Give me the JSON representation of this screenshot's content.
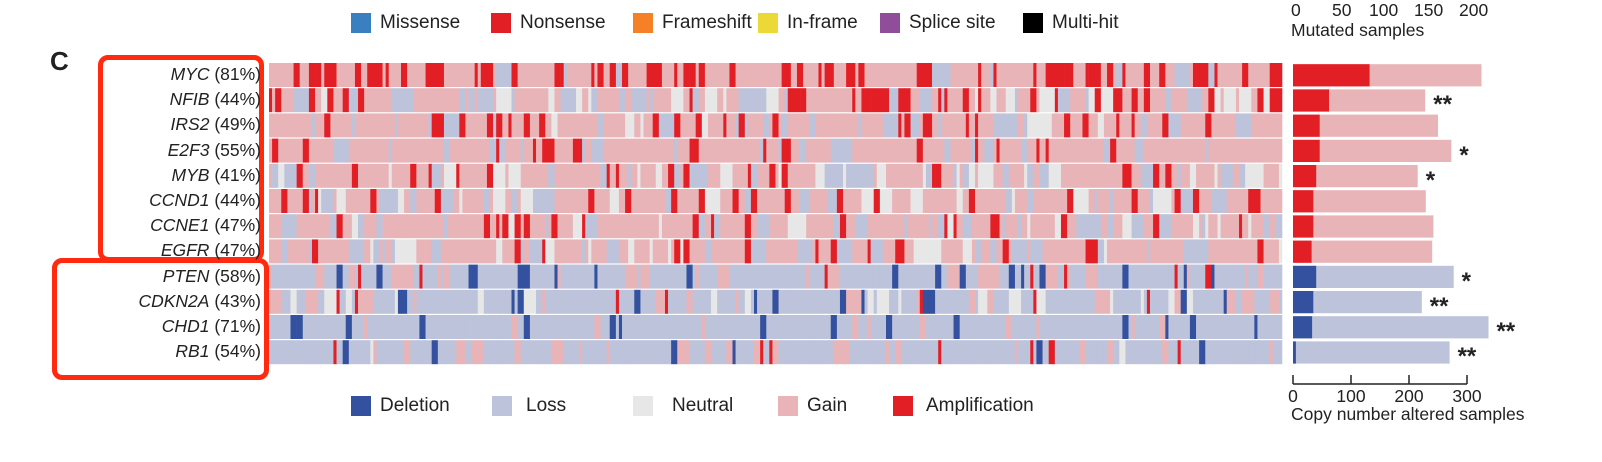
{
  "panel_label": "C",
  "colors": {
    "missense": "#3a7fbf",
    "nonsense": "#e31f26",
    "frameshift": "#f58025",
    "inframe": "#ecd836",
    "splice": "#904d9a",
    "multihit": "#000000",
    "deletion": "#33519e",
    "loss": "#bcc3da",
    "neutral": "#e7e7e7",
    "gain": "#e8b4b7",
    "amplification": "#e31f26",
    "highlight_box": "#ff2a0f"
  },
  "mutation_legend": [
    {
      "label": "Missense",
      "color_key": "missense"
    },
    {
      "label": "Nonsense",
      "color_key": "nonsense"
    },
    {
      "label": "Frameshift",
      "color_key": "frameshift"
    },
    {
      "label": "In-frame",
      "color_key": "inframe"
    },
    {
      "label": "Splice site",
      "color_key": "splice"
    },
    {
      "label": "Multi-hit",
      "color_key": "multihit"
    }
  ],
  "cna_legend": [
    {
      "label": "Deletion",
      "color_key": "deletion"
    },
    {
      "label": "Loss",
      "color_key": "loss"
    },
    {
      "label": "Neutral",
      "color_key": "neutral"
    },
    {
      "label": "Gain",
      "color_key": "gain"
    },
    {
      "label": "Amplification",
      "color_key": "amplification"
    }
  ],
  "chart_data": {
    "type": "heatmap",
    "title": "",
    "genes": [
      {
        "gene": "MYC",
        "pct": "(81%)",
        "group": "amplified",
        "strong": 132,
        "total": 325,
        "significance": ""
      },
      {
        "gene": "NFIB",
        "pct": "(44%)",
        "group": "amplified",
        "strong": 62,
        "total": 228,
        "significance": "**"
      },
      {
        "gene": "IRS2",
        "pct": "(49%)",
        "group": "amplified",
        "strong": 46,
        "total": 250,
        "significance": ""
      },
      {
        "gene": "E2F3",
        "pct": "(55%)",
        "group": "amplified",
        "strong": 46,
        "total": 273,
        "significance": "*"
      },
      {
        "gene": "MYB",
        "pct": "(41%)",
        "group": "amplified",
        "strong": 40,
        "total": 215,
        "significance": "*"
      },
      {
        "gene": "CCND1",
        "pct": "(44%)",
        "group": "amplified",
        "strong": 35,
        "total": 229,
        "significance": ""
      },
      {
        "gene": "CCNE1",
        "pct": "(47%)",
        "group": "amplified",
        "strong": 35,
        "total": 242,
        "significance": ""
      },
      {
        "gene": "EGFR",
        "pct": "(47%)",
        "group": "amplified",
        "strong": 32,
        "total": 240,
        "significance": ""
      },
      {
        "gene": "PTEN",
        "pct": "(58%)",
        "group": "deleted",
        "strong": 40,
        "total": 277,
        "significance": "*"
      },
      {
        "gene": "CDKN2A",
        "pct": "(43%)",
        "group": "deleted",
        "strong": 35,
        "total": 222,
        "significance": "**"
      },
      {
        "gene": "CHD1",
        "pct": "(71%)",
        "group": "deleted",
        "strong": 33,
        "total": 337,
        "significance": "**"
      },
      {
        "gene": "RB1",
        "pct": "(54%)",
        "group": "deleted",
        "strong": 5,
        "total": 270,
        "significance": "**"
      }
    ],
    "bar_chart": {
      "type": "bar",
      "orientation": "horizontal",
      "series": [
        {
          "name": "Amplification / Deletion",
          "values_key": "strong"
        },
        {
          "name": "Gain / Loss (total altered)",
          "values_key": "total"
        }
      ],
      "top_axis": {
        "label": "Mutated samples",
        "ticks": [
          "0",
          "50",
          "100",
          "150",
          "200"
        ]
      },
      "bottom_axis": {
        "label": "Copy number altered samples",
        "ticks": [
          "0",
          "100",
          "200",
          "300"
        ],
        "range": [
          0,
          300
        ]
      }
    },
    "heatmap_samples": 330
  }
}
